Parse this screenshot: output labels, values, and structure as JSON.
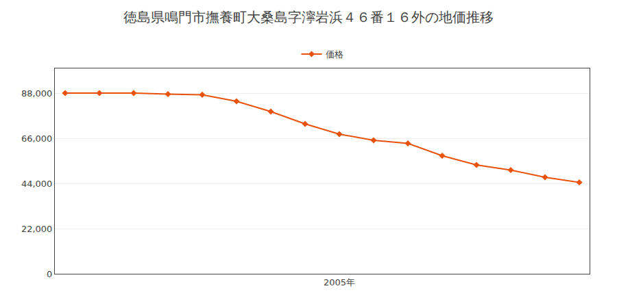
{
  "chart_data": {
    "type": "line",
    "title": "徳島県鳴門市撫養町大桑島字濘岩浜４６番１６外の地価推移",
    "x": [
      1997,
      1998,
      1999,
      2000,
      2001,
      2002,
      2003,
      2004,
      2005,
      2006,
      2007,
      2008,
      2009,
      2010,
      2011,
      2012
    ],
    "series": [
      {
        "name": "価格",
        "color": "#E8520A",
        "values": [
          88000,
          88000,
          88000,
          87500,
          87200,
          84000,
          79000,
          73000,
          68000,
          65000,
          63500,
          57500,
          53000,
          50500,
          47000,
          44500
        ]
      }
    ],
    "xlim": [
      1996.7,
      2012.3
    ],
    "xticks": [
      {
        "value": 2005,
        "label": "2005年"
      }
    ],
    "ylim": [
      0,
      100000
    ],
    "yticks": [
      0,
      {
        "value": 22000,
        "label": "22,000"
      },
      {
        "value": 44000,
        "label": "44,000"
      },
      {
        "value": 66000,
        "label": "66,000"
      },
      {
        "value": 88000,
        "label": "88,000"
      }
    ],
    "grid": true,
    "legend": "top",
    "marker": "diamond"
  }
}
